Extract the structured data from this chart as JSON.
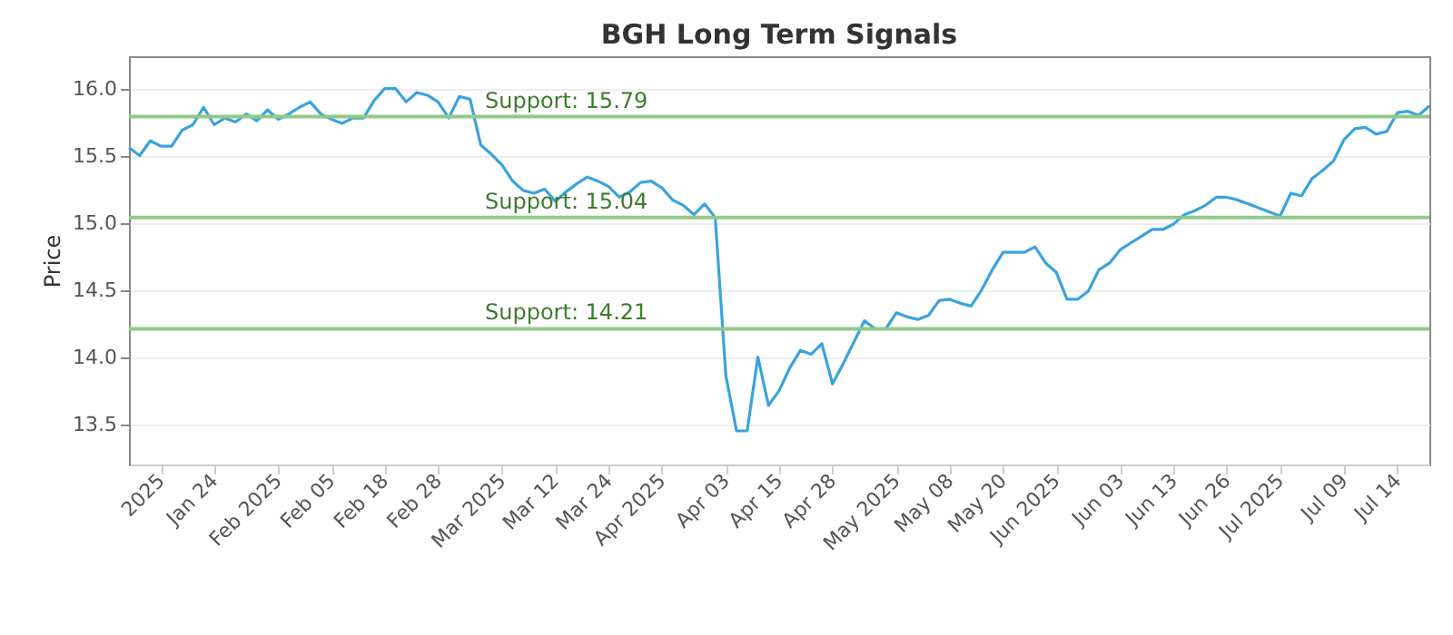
{
  "chart_data": {
    "type": "line",
    "title": "BGH Long Term Signals",
    "ylabel": "Price",
    "categories": [
      null,
      null,
      null,
      "2025",
      null,
      null,
      null,
      null,
      "Jan 24",
      null,
      null,
      null,
      null,
      null,
      "Feb 2025",
      null,
      null,
      null,
      null,
      "Feb 05",
      null,
      null,
      null,
      null,
      "Feb 18",
      null,
      null,
      null,
      null,
      "Feb 28",
      null,
      null,
      null,
      null,
      null,
      "Mar 2025",
      null,
      null,
      null,
      null,
      "Mar 12",
      null,
      null,
      null,
      null,
      "Mar 24",
      null,
      null,
      null,
      null,
      "Apr 2025",
      null,
      null,
      null,
      null,
      null,
      "Apr 03",
      null,
      null,
      null,
      null,
      "Apr 15",
      null,
      null,
      null,
      null,
      "Apr 28",
      null,
      null,
      null,
      null,
      null,
      "May 2025",
      null,
      null,
      null,
      null,
      "May 08",
      null,
      null,
      null,
      null,
      "May 20",
      null,
      null,
      null,
      null,
      "Jun 2025",
      null,
      null,
      null,
      null,
      null,
      "Jun 03",
      null,
      null,
      null,
      null,
      "Jun 13",
      null,
      null,
      null,
      null,
      "Jun 26",
      null,
      null,
      null,
      null,
      "Jul 2025",
      null,
      null,
      null,
      null,
      null,
      "Jul 09",
      null,
      null,
      null,
      null,
      "Jul 14",
      null,
      null,
      null
    ],
    "series": [
      {
        "color": "#3aa3dd",
        "values": [
          15.56,
          15.5,
          15.61,
          15.57,
          15.57,
          15.69,
          15.73,
          15.86,
          15.73,
          15.78,
          15.75,
          15.81,
          15.76,
          15.84,
          15.77,
          15.81,
          15.86,
          15.9,
          15.81,
          15.77,
          15.74,
          15.78,
          15.78,
          15.91,
          16.0,
          16.0,
          15.9,
          15.97,
          15.95,
          15.9,
          15.78,
          15.94,
          15.92,
          15.58,
          15.51,
          15.43,
          15.31,
          15.24,
          15.22,
          15.25,
          15.16,
          15.23,
          15.29,
          15.34,
          15.31,
          15.27,
          15.19,
          15.23,
          15.3,
          15.31,
          15.26,
          15.17,
          15.13,
          15.06,
          15.14,
          15.04,
          13.86,
          13.45,
          13.45,
          14.0,
          13.64,
          13.75,
          13.92,
          14.05,
          14.02,
          14.1,
          13.8,
          13.95,
          14.11,
          14.27,
          14.21,
          14.21,
          14.33,
          14.3,
          14.28,
          14.31,
          14.42,
          14.43,
          14.4,
          14.38,
          14.5,
          14.65,
          14.78,
          14.78,
          14.78,
          14.82,
          14.7,
          14.63,
          14.43,
          14.43,
          14.49,
          14.65,
          14.7,
          14.8,
          14.85,
          14.9,
          14.95,
          14.95,
          14.99,
          15.06,
          15.09,
          15.13,
          15.19,
          15.19,
          15.17,
          15.14,
          15.11,
          15.08,
          15.05,
          15.22,
          15.2,
          15.33,
          15.39,
          15.46,
          15.62,
          15.7,
          15.71,
          15.66,
          15.68,
          15.82,
          15.83,
          15.8,
          15.87
        ]
      }
    ],
    "ylim": [
      13.2,
      16.24
    ],
    "yticks": [
      13.5,
      {
        "value": 14,
        "label": "14.0"
      },
      14.5,
      {
        "value": 15,
        "label": "15.0"
      },
      15.5,
      {
        "value": 16,
        "label": "16.0"
      }
    ],
    "ref_lines": [
      {
        "axis": "y",
        "value": 15.79,
        "label": "Support: 15.79",
        "color": "#90c987"
      },
      {
        "axis": "y",
        "value": 15.04,
        "label": "Support: 15.04",
        "color": "#90c987"
      },
      {
        "axis": "y",
        "value": 14.21,
        "label": "Support: 14.21",
        "color": "#90c987"
      }
    ],
    "grid": "y",
    "marker": "none",
    "line_style": "solid"
  }
}
